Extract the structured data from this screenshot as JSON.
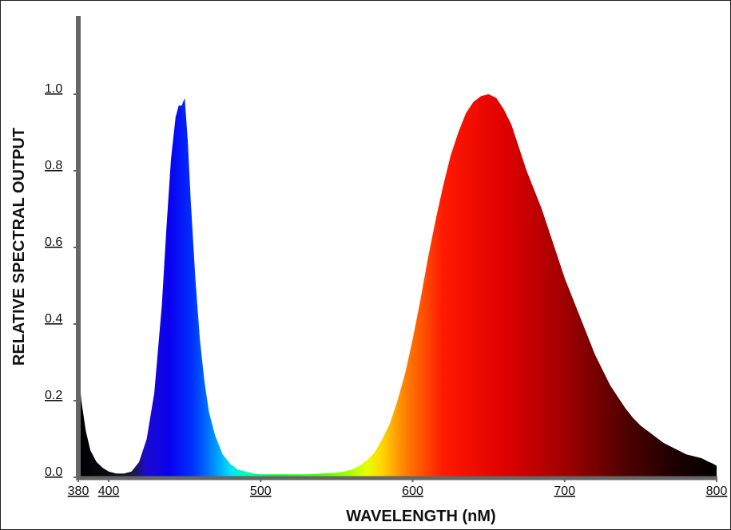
{
  "chart_data": {
    "type": "area",
    "title": "",
    "xlabel": "WAVELENGTH (nM)",
    "ylabel": "RELATIVE SPECTRAL OUTPUT",
    "xlim": [
      380,
      800
    ],
    "ylim": [
      0,
      1.0
    ],
    "x_ticks": [
      {
        "value": 380,
        "label": "380"
      },
      {
        "value": 400,
        "label": "400"
      },
      {
        "value": 500,
        "label": "500"
      },
      {
        "value": 600,
        "label": "600"
      },
      {
        "value": 700,
        "label": "700"
      },
      {
        "value": 800,
        "label": "800"
      }
    ],
    "y_ticks": [
      {
        "value": 0.0,
        "label": "0.0"
      },
      {
        "value": 0.2,
        "label": "0.2"
      },
      {
        "value": 0.4,
        "label": "0.4"
      },
      {
        "value": 0.6,
        "label": "0.6"
      },
      {
        "value": 0.8,
        "label": "0.8"
      },
      {
        "value": 1.0,
        "label": "1.0"
      }
    ],
    "grid": false,
    "fill": "spectral color gradient",
    "x": [
      380,
      382,
      385,
      388,
      392,
      396,
      400,
      405,
      410,
      415,
      420,
      425,
      430,
      435,
      438,
      441,
      444,
      446,
      448,
      450,
      452,
      454,
      457,
      460,
      463,
      466,
      470,
      475,
      480,
      485,
      490,
      495,
      500,
      510,
      520,
      530,
      540,
      550,
      555,
      560,
      565,
      570,
      575,
      580,
      585,
      590,
      595,
      600,
      605,
      610,
      615,
      620,
      625,
      630,
      635,
      640,
      645,
      650,
      655,
      660,
      665,
      670,
      675,
      680,
      685,
      690,
      695,
      700,
      705,
      710,
      715,
      720,
      725,
      730,
      735,
      740,
      745,
      750,
      755,
      760,
      765,
      770,
      775,
      780,
      785,
      790,
      795,
      798,
      800
    ],
    "y": [
      0.29,
      0.2,
      0.12,
      0.07,
      0.04,
      0.025,
      0.015,
      0.01,
      0.01,
      0.015,
      0.04,
      0.1,
      0.22,
      0.45,
      0.65,
      0.83,
      0.94,
      0.97,
      0.97,
      0.99,
      0.88,
      0.72,
      0.52,
      0.36,
      0.25,
      0.17,
      0.11,
      0.06,
      0.035,
      0.02,
      0.015,
      0.01,
      0.008,
      0.008,
      0.008,
      0.008,
      0.01,
      0.012,
      0.015,
      0.02,
      0.03,
      0.045,
      0.065,
      0.1,
      0.14,
      0.2,
      0.27,
      0.36,
      0.46,
      0.57,
      0.67,
      0.76,
      0.84,
      0.9,
      0.95,
      0.98,
      0.995,
      1.0,
      0.99,
      0.96,
      0.92,
      0.86,
      0.8,
      0.75,
      0.7,
      0.64,
      0.58,
      0.52,
      0.47,
      0.42,
      0.37,
      0.32,
      0.28,
      0.24,
      0.21,
      0.18,
      0.155,
      0.135,
      0.12,
      0.105,
      0.09,
      0.08,
      0.07,
      0.06,
      0.055,
      0.05,
      0.04,
      0.035,
      0.03
    ],
    "spectrum_colors": [
      {
        "wl": 380,
        "color": "#000000"
      },
      {
        "wl": 400,
        "color": "#0a0a14"
      },
      {
        "wl": 415,
        "color": "#1a1a3a"
      },
      {
        "wl": 425,
        "color": "#1a0ad0"
      },
      {
        "wl": 440,
        "color": "#0a00f0"
      },
      {
        "wl": 455,
        "color": "#0030ff"
      },
      {
        "wl": 465,
        "color": "#0070ff"
      },
      {
        "wl": 480,
        "color": "#00e0ff"
      },
      {
        "wl": 490,
        "color": "#00ffb0"
      },
      {
        "wl": 510,
        "color": "#00ff30"
      },
      {
        "wl": 545,
        "color": "#60ff00"
      },
      {
        "wl": 570,
        "color": "#e8ff00"
      },
      {
        "wl": 580,
        "color": "#ffd400"
      },
      {
        "wl": 595,
        "color": "#ff8000"
      },
      {
        "wl": 620,
        "color": "#ff1a00"
      },
      {
        "wl": 660,
        "color": "#e00000"
      },
      {
        "wl": 700,
        "color": "#a00000"
      },
      {
        "wl": 740,
        "color": "#500000"
      },
      {
        "wl": 770,
        "color": "#200000"
      },
      {
        "wl": 800,
        "color": "#000000"
      }
    ]
  }
}
